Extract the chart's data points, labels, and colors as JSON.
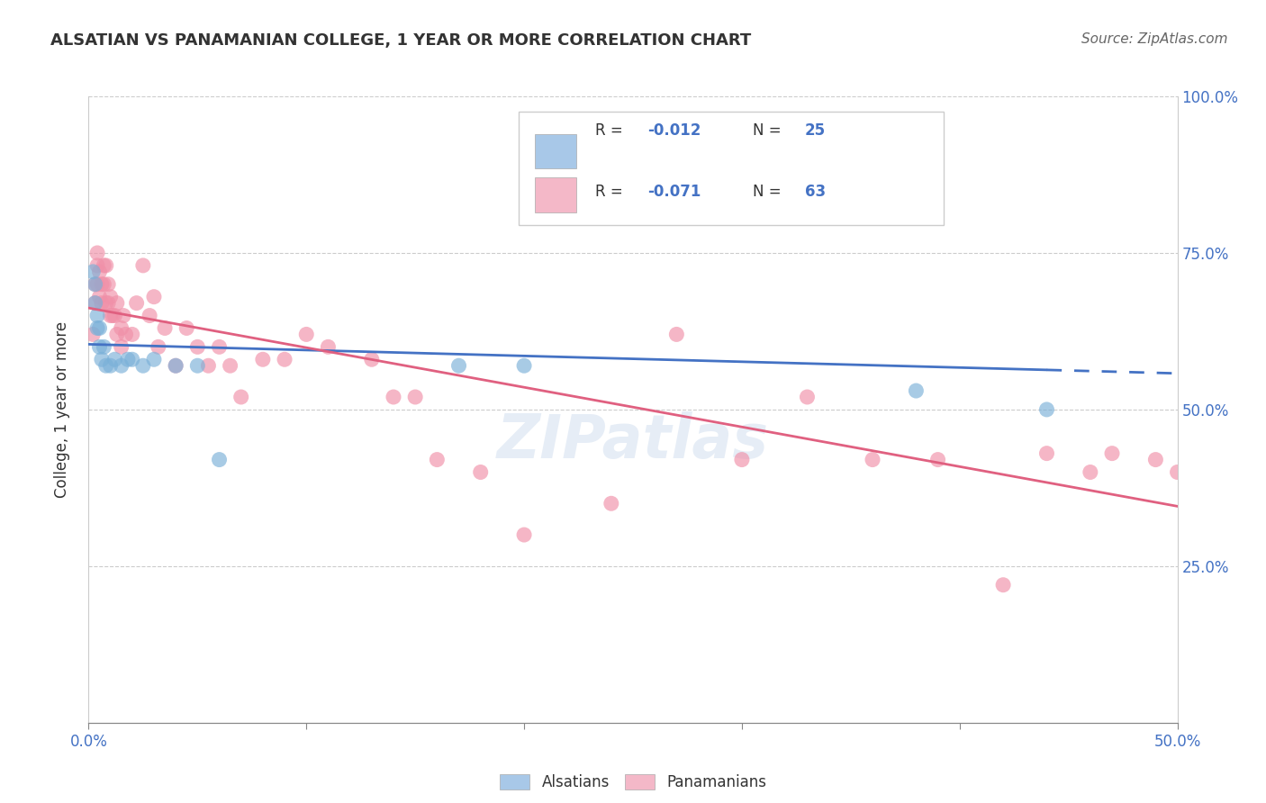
{
  "title": "ALSATIAN VS PANAMANIAN COLLEGE, 1 YEAR OR MORE CORRELATION CHART",
  "source": "Source: ZipAtlas.com",
  "ylabel": "College, 1 year or more",
  "xlim": [
    0.0,
    0.5
  ],
  "ylim": [
    0.0,
    1.0
  ],
  "legend_r1": "-0.012",
  "legend_n1": "25",
  "legend_r2": "-0.071",
  "legend_n2": "63",
  "blue_color": "#a8c8e8",
  "pink_color": "#f4b8c8",
  "blue_scatter": "#7ab0d8",
  "pink_scatter": "#f090a8",
  "line_blue": "#4472c4",
  "line_pink": "#e06080",
  "tick_color": "#4472c4",
  "title_color": "#333333",
  "grid_color": "#cccccc",
  "alsatians_x": [
    0.002,
    0.003,
    0.003,
    0.004,
    0.004,
    0.005,
    0.005,
    0.006,
    0.007,
    0.008,
    0.01,
    0.012,
    0.015,
    0.018,
    0.02,
    0.025,
    0.03,
    0.04,
    0.05,
    0.06,
    0.17,
    0.2,
    0.26,
    0.38,
    0.44
  ],
  "alsatians_y": [
    0.72,
    0.7,
    0.67,
    0.65,
    0.63,
    0.63,
    0.6,
    0.58,
    0.6,
    0.57,
    0.57,
    0.58,
    0.57,
    0.58,
    0.58,
    0.57,
    0.58,
    0.57,
    0.57,
    0.42,
    0.57,
    0.57,
    0.83,
    0.53,
    0.5
  ],
  "panamanians_x": [
    0.002,
    0.003,
    0.003,
    0.004,
    0.004,
    0.004,
    0.005,
    0.005,
    0.006,
    0.006,
    0.007,
    0.007,
    0.008,
    0.008,
    0.009,
    0.009,
    0.01,
    0.01,
    0.011,
    0.012,
    0.013,
    0.013,
    0.015,
    0.015,
    0.016,
    0.017,
    0.02,
    0.022,
    0.025,
    0.028,
    0.03,
    0.032,
    0.035,
    0.04,
    0.045,
    0.05,
    0.055,
    0.06,
    0.065,
    0.07,
    0.08,
    0.09,
    0.1,
    0.11,
    0.13,
    0.14,
    0.15,
    0.16,
    0.18,
    0.2,
    0.21,
    0.24,
    0.27,
    0.3,
    0.33,
    0.36,
    0.39,
    0.42,
    0.44,
    0.46,
    0.47,
    0.49,
    0.5
  ],
  "panamanians_y": [
    0.62,
    0.7,
    0.67,
    0.75,
    0.73,
    0.7,
    0.72,
    0.68,
    0.7,
    0.67,
    0.73,
    0.7,
    0.73,
    0.67,
    0.7,
    0.67,
    0.68,
    0.65,
    0.65,
    0.65,
    0.67,
    0.62,
    0.63,
    0.6,
    0.65,
    0.62,
    0.62,
    0.67,
    0.73,
    0.65,
    0.68,
    0.6,
    0.63,
    0.57,
    0.63,
    0.6,
    0.57,
    0.6,
    0.57,
    0.52,
    0.58,
    0.58,
    0.62,
    0.6,
    0.58,
    0.52,
    0.52,
    0.42,
    0.4,
    0.3,
    0.9,
    0.35,
    0.62,
    0.42,
    0.52,
    0.42,
    0.42,
    0.22,
    0.43,
    0.4,
    0.43,
    0.42,
    0.4
  ]
}
